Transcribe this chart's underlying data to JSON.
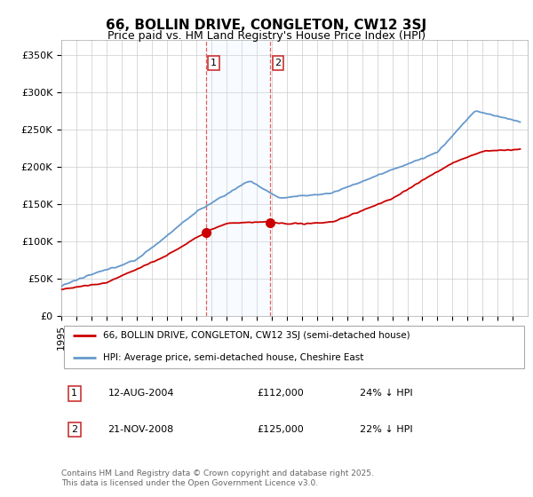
{
  "title": "66, BOLLIN DRIVE, CONGLETON, CW12 3SJ",
  "subtitle": "Price paid vs. HM Land Registry's House Price Index (HPI)",
  "ylim": [
    0,
    370000
  ],
  "yticks": [
    0,
    50000,
    100000,
    150000,
    200000,
    250000,
    300000,
    350000
  ],
  "ytick_labels": [
    "£0",
    "£50K",
    "£100K",
    "£150K",
    "£200K",
    "£250K",
    "£300K",
    "£350K"
  ],
  "sale1_date_num": 2004.61,
  "sale2_date_num": 2008.89,
  "sale1_price": 112000,
  "sale2_price": 125000,
  "sale1_date_str": "12-AUG-2004",
  "sale2_date_str": "21-NOV-2008",
  "sale1_hpi_pct": "24% ↓ HPI",
  "sale2_hpi_pct": "22% ↓ HPI",
  "legend_line1": "66, BOLLIN DRIVE, CONGLETON, CW12 3SJ (semi-detached house)",
  "legend_line2": "HPI: Average price, semi-detached house, Cheshire East",
  "footer": "Contains HM Land Registry data © Crown copyright and database right 2025.\nThis data is licensed under the Open Government Licence v3.0.",
  "red_color": "#cc0000",
  "blue_color": "#6699cc",
  "shade_color": "#ddeeff",
  "grid_color": "#cccccc",
  "title_fontsize": 11,
  "subtitle_fontsize": 9,
  "tick_fontsize": 8,
  "xstart": 1995,
  "xend": 2026
}
